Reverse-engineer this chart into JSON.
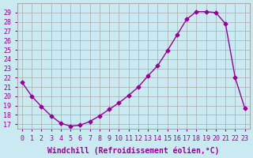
{
  "x": [
    0,
    1,
    2,
    3,
    4,
    5,
    6,
    7,
    8,
    9,
    10,
    11,
    12,
    13,
    14,
    15,
    16,
    17,
    18,
    19,
    20,
    21,
    22,
    23
  ],
  "y": [
    21.5,
    20.0,
    18.9,
    17.9,
    17.1,
    16.8,
    16.9,
    17.3,
    17.9,
    18.6,
    19.3,
    20.1,
    21.0,
    22.2,
    23.3,
    24.9,
    26.6,
    28.3,
    29.1,
    29.1,
    29.0,
    27.8,
    22.0,
    18.7
  ],
  "x_labels": [
    "0",
    "1",
    "2",
    "3",
    "4",
    "5",
    "6",
    "7",
    "8",
    "9",
    "10",
    "11",
    "12",
    "13",
    "14",
    "15",
    "16",
    "17",
    "18",
    "19",
    "20",
    "21",
    "22",
    "23"
  ],
  "y_ticks": [
    17,
    18,
    19,
    20,
    21,
    22,
    23,
    24,
    25,
    26,
    27,
    28,
    29
  ],
  "ylim": [
    16.5,
    30.0
  ],
  "xlim": [
    -0.5,
    23.5
  ],
  "xlabel": "Windchill (Refroidissement éolien,°C)",
  "line_color": "#990099",
  "marker": "D",
  "marker_size": 2.5,
  "bg_color": "#c8eaf0",
  "grid_color": "#aaaaaa",
  "label_color": "#990099",
  "tick_color": "#990099",
  "font_size": 7
}
